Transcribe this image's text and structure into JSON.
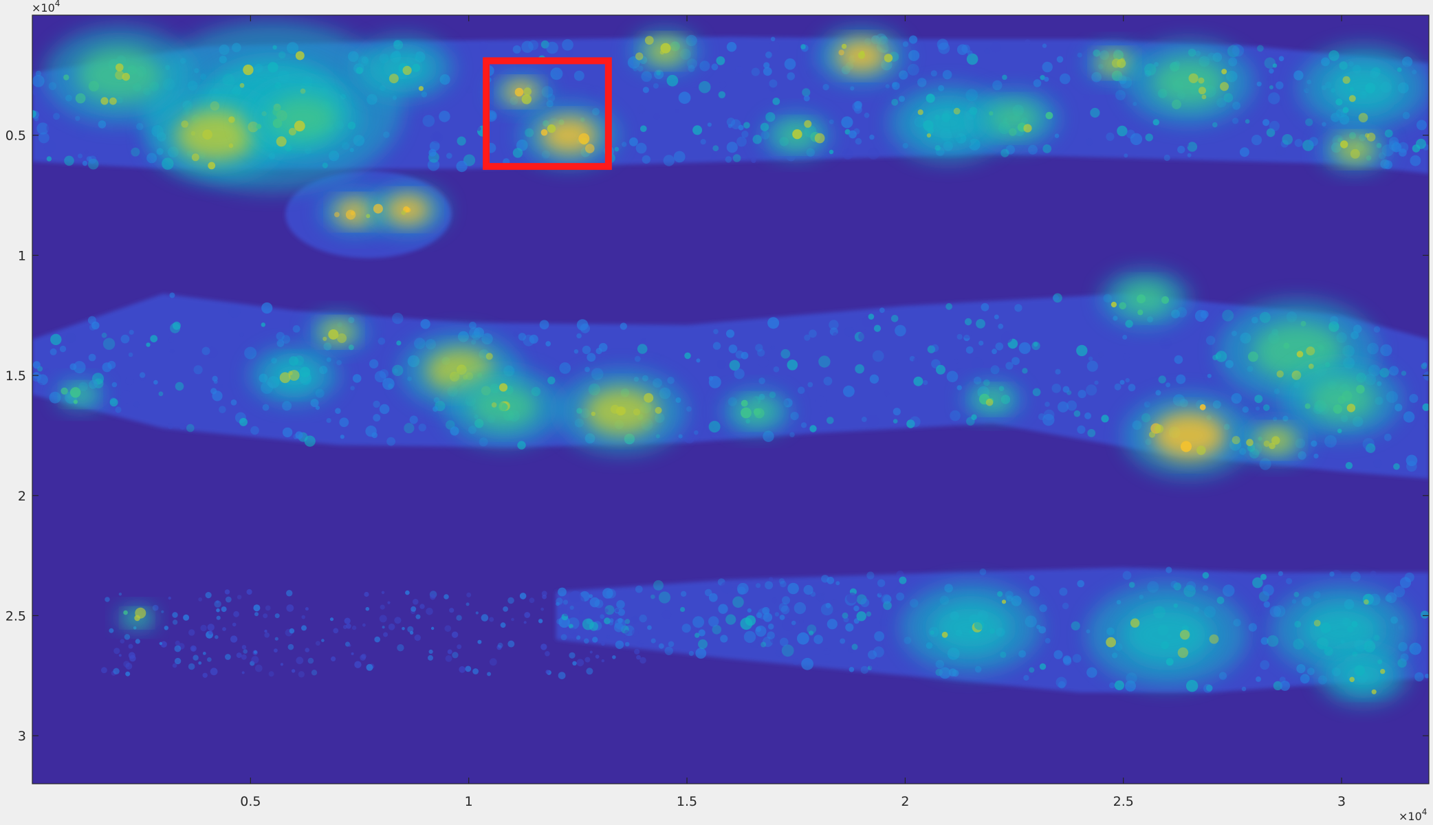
{
  "chart_data": {
    "type": "heatmap",
    "title": "",
    "xlabel": "",
    "ylabel": "",
    "xlim": [
      0,
      32000
    ],
    "ylim": [
      0,
      32000
    ],
    "y_reversed": true,
    "x_ticks": [
      {
        "value": 5000,
        "label": "0.5"
      },
      {
        "value": 10000,
        "label": "1"
      },
      {
        "value": 15000,
        "label": "1.5"
      },
      {
        "value": 20000,
        "label": "2"
      },
      {
        "value": 25000,
        "label": "2.5"
      },
      {
        "value": 30000,
        "label": "3"
      }
    ],
    "y_ticks": [
      {
        "value": 5000,
        "label": "0.5"
      },
      {
        "value": 10000,
        "label": "1"
      },
      {
        "value": 15000,
        "label": "1.5"
      },
      {
        "value": 20000,
        "label": "2"
      },
      {
        "value": 25000,
        "label": "2.5"
      },
      {
        "value": 30000,
        "label": "3"
      }
    ],
    "x_exponent": {
      "base": "×10",
      "power": "4"
    },
    "y_exponent": {
      "base": "×10",
      "power": "4"
    },
    "colormap": "parula",
    "colors": {
      "background_low": "#3e2b9e",
      "low": "#3d49c9",
      "mid_low": "#2a7de0",
      "mid": "#14b3c2",
      "mid_high": "#3fc48d",
      "high": "#b8cb3a",
      "peak": "#f5c22e"
    },
    "tissue_bands": [
      {
        "name": "top-section",
        "top_edge": [
          [
            0,
            2400
          ],
          [
            4000,
            1300
          ],
          [
            8000,
            1100
          ],
          [
            12000,
            1000
          ],
          [
            16000,
            900
          ],
          [
            20000,
            1000
          ],
          [
            24000,
            1000
          ],
          [
            28000,
            1300
          ],
          [
            32000,
            2000
          ]
        ],
        "bottom_edge": [
          [
            0,
            6100
          ],
          [
            3000,
            6400
          ],
          [
            6000,
            6400
          ],
          [
            10000,
            6400
          ],
          [
            14000,
            6200
          ],
          [
            18000,
            6000
          ],
          [
            22000,
            5800
          ],
          [
            26000,
            6000
          ],
          [
            30000,
            6200
          ],
          [
            32000,
            6600
          ]
        ]
      },
      {
        "name": "middle-section",
        "top_edge": [
          [
            0,
            13500
          ],
          [
            3000,
            11600
          ],
          [
            6000,
            12300
          ],
          [
            10000,
            12800
          ],
          [
            15000,
            12900
          ],
          [
            20000,
            12100
          ],
          [
            25000,
            11600
          ],
          [
            30000,
            12500
          ],
          [
            32000,
            13500
          ]
        ],
        "bottom_edge": [
          [
            0,
            15800
          ],
          [
            3000,
            17200
          ],
          [
            7000,
            17900
          ],
          [
            11000,
            18000
          ],
          [
            15000,
            17800
          ],
          [
            18000,
            17400
          ],
          [
            22000,
            17000
          ],
          [
            26000,
            18300
          ],
          [
            30000,
            19000
          ],
          [
            32000,
            19300
          ]
        ]
      },
      {
        "name": "bottom-section",
        "top_edge": [
          [
            12000,
            24000
          ],
          [
            16000,
            23500
          ],
          [
            21000,
            23200
          ],
          [
            25000,
            23000
          ],
          [
            28000,
            23200
          ],
          [
            32000,
            23200
          ]
        ],
        "bottom_edge": [
          [
            12000,
            26000
          ],
          [
            16000,
            26800
          ],
          [
            20000,
            27500
          ],
          [
            24000,
            28200
          ],
          [
            27000,
            28200
          ],
          [
            30000,
            27800
          ],
          [
            32000,
            27600
          ]
        ]
      }
    ],
    "sparse_cells_region": {
      "x": [
        1500,
        14000
      ],
      "y": [
        24000,
        27500
      ]
    },
    "detached_fragment": {
      "x": [
        5800,
        9600
      ],
      "y": [
        7300,
        9300
      ]
    },
    "hotspots": [
      {
        "x": 5500,
        "y": 3800,
        "r": 2600,
        "v": 0.55
      },
      {
        "x": 4200,
        "y": 5000,
        "r": 1400,
        "v": 0.75
      },
      {
        "x": 6200,
        "y": 4300,
        "r": 1200,
        "v": 0.7
      },
      {
        "x": 2000,
        "y": 2500,
        "r": 1500,
        "v": 0.6
      },
      {
        "x": 8500,
        "y": 2200,
        "r": 1000,
        "v": 0.55
      },
      {
        "x": 11200,
        "y": 3200,
        "r": 600,
        "v": 0.85
      },
      {
        "x": 12300,
        "y": 5000,
        "r": 1000,
        "v": 0.9
      },
      {
        "x": 14500,
        "y": 1500,
        "r": 700,
        "v": 0.8
      },
      {
        "x": 19000,
        "y": 1700,
        "r": 900,
        "v": 0.9
      },
      {
        "x": 17500,
        "y": 5000,
        "r": 700,
        "v": 0.7
      },
      {
        "x": 21000,
        "y": 4500,
        "r": 1200,
        "v": 0.55
      },
      {
        "x": 22500,
        "y": 4300,
        "r": 900,
        "v": 0.7
      },
      {
        "x": 24800,
        "y": 2000,
        "r": 600,
        "v": 0.75
      },
      {
        "x": 26500,
        "y": 2800,
        "r": 1300,
        "v": 0.6
      },
      {
        "x": 30500,
        "y": 3000,
        "r": 1300,
        "v": 0.55
      },
      {
        "x": 30300,
        "y": 5600,
        "r": 700,
        "v": 0.75
      },
      {
        "x": 7400,
        "y": 8200,
        "r": 700,
        "v": 0.85
      },
      {
        "x": 8600,
        "y": 8100,
        "r": 800,
        "v": 0.85
      },
      {
        "x": 6000,
        "y": 15000,
        "r": 900,
        "v": 0.5
      },
      {
        "x": 9800,
        "y": 14800,
        "r": 1200,
        "v": 0.8
      },
      {
        "x": 10800,
        "y": 16300,
        "r": 1200,
        "v": 0.65
      },
      {
        "x": 13500,
        "y": 16500,
        "r": 1300,
        "v": 0.8
      },
      {
        "x": 16600,
        "y": 16500,
        "r": 700,
        "v": 0.6
      },
      {
        "x": 22000,
        "y": 16000,
        "r": 600,
        "v": 0.6
      },
      {
        "x": 26500,
        "y": 17500,
        "r": 1300,
        "v": 0.85
      },
      {
        "x": 29000,
        "y": 14000,
        "r": 1600,
        "v": 0.7
      },
      {
        "x": 30000,
        "y": 16000,
        "r": 1200,
        "v": 0.6
      },
      {
        "x": 28500,
        "y": 17700,
        "r": 700,
        "v": 0.75
      },
      {
        "x": 25500,
        "y": 11800,
        "r": 900,
        "v": 0.65
      },
      {
        "x": 7000,
        "y": 13200,
        "r": 600,
        "v": 0.75
      },
      {
        "x": 1100,
        "y": 15800,
        "r": 500,
        "v": 0.7
      },
      {
        "x": 21500,
        "y": 25500,
        "r": 1400,
        "v": 0.5
      },
      {
        "x": 26000,
        "y": 25800,
        "r": 1600,
        "v": 0.55
      },
      {
        "x": 30000,
        "y": 25600,
        "r": 1400,
        "v": 0.5
      },
      {
        "x": 30500,
        "y": 27500,
        "r": 900,
        "v": 0.55
      },
      {
        "x": 2400,
        "y": 25100,
        "r": 400,
        "v": 0.7
      }
    ],
    "roi_box": {
      "x0": 10400,
      "x1": 13200,
      "y0": 1900,
      "y1": 6300,
      "color": "#ff1a1a"
    }
  }
}
